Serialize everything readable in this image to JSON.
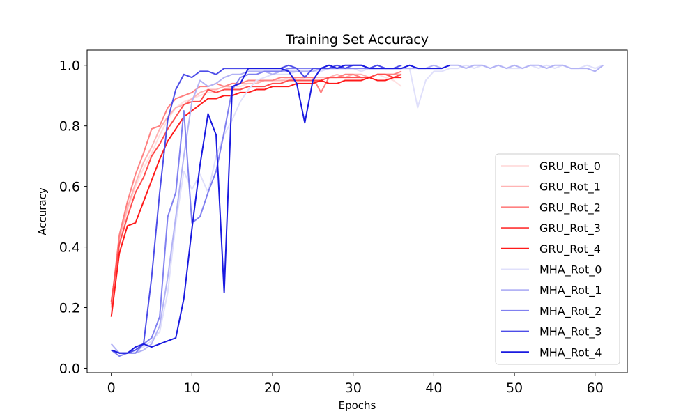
{
  "chart_data": {
    "type": "line",
    "title": "Training Set Accuracy",
    "xlabel": "Epochs",
    "ylabel": "Accuracy",
    "xlim": [
      -3,
      64
    ],
    "ylim": [
      -0.015,
      1.05
    ],
    "xticks": [
      0,
      10,
      20,
      30,
      40,
      50,
      60
    ],
    "yticks": [
      0.0,
      0.2,
      0.4,
      0.6,
      0.8,
      1.0
    ],
    "ytick_labels": [
      "0.0",
      "0.2",
      "0.4",
      "0.6",
      "0.8",
      "1.0"
    ],
    "grid": false,
    "legend_position": "lower-right",
    "series": [
      {
        "name": "GRU_Rot_0",
        "color": "#ffe0e0",
        "x": [
          0,
          1,
          2,
          3,
          4,
          5,
          6,
          7,
          8,
          9,
          10,
          11,
          12,
          13,
          14,
          15,
          16,
          17,
          18,
          19,
          20,
          21,
          22,
          23,
          24,
          25,
          26,
          27,
          28,
          29,
          30,
          31,
          32,
          33,
          34,
          35,
          36
        ],
        "y": [
          0.19,
          0.42,
          0.52,
          0.6,
          0.66,
          0.71,
          0.77,
          0.82,
          0.86,
          0.88,
          0.89,
          0.9,
          0.91,
          0.91,
          0.92,
          0.93,
          0.93,
          0.94,
          0.94,
          0.95,
          0.95,
          0.95,
          0.96,
          0.95,
          0.96,
          0.96,
          0.96,
          0.96,
          0.97,
          0.96,
          0.97,
          0.96,
          0.96,
          0.97,
          0.96,
          0.95,
          0.93
        ]
      },
      {
        "name": "GRU_Rot_1",
        "color": "#ffb3b3",
        "x": [
          0,
          1,
          2,
          3,
          4,
          5,
          6,
          7,
          8,
          9,
          10,
          11,
          12,
          13,
          14,
          15,
          16,
          17,
          18,
          19,
          20,
          21,
          22,
          23,
          24,
          25,
          26,
          27,
          28,
          29,
          30,
          31,
          32,
          33,
          34,
          35,
          36
        ],
        "y": [
          0.2,
          0.43,
          0.53,
          0.61,
          0.68,
          0.73,
          0.79,
          0.83,
          0.86,
          0.87,
          0.89,
          0.91,
          0.92,
          0.92,
          0.93,
          0.93,
          0.94,
          0.94,
          0.94,
          0.95,
          0.95,
          0.95,
          0.95,
          0.96,
          0.96,
          0.96,
          0.96,
          0.96,
          0.97,
          0.96,
          0.97,
          0.97,
          0.96,
          0.97,
          0.97,
          0.97,
          0.97
        ]
      },
      {
        "name": "GRU_Rot_2",
        "color": "#ff8080",
        "x": [
          0,
          1,
          2,
          3,
          4,
          5,
          6,
          7,
          8,
          9,
          10,
          11,
          12,
          13,
          14,
          15,
          16,
          17,
          18,
          19,
          20,
          21,
          22,
          23,
          24,
          25,
          26,
          27,
          28,
          29,
          30,
          31,
          32,
          33,
          34,
          35,
          36
        ],
        "y": [
          0.21,
          0.44,
          0.55,
          0.64,
          0.71,
          0.79,
          0.8,
          0.86,
          0.89,
          0.9,
          0.91,
          0.93,
          0.93,
          0.94,
          0.93,
          0.94,
          0.94,
          0.95,
          0.95,
          0.95,
          0.95,
          0.96,
          0.96,
          0.96,
          0.96,
          0.96,
          0.91,
          0.96,
          0.96,
          0.97,
          0.97,
          0.96,
          0.96,
          0.97,
          0.97,
          0.97,
          0.98
        ]
      },
      {
        "name": "GRU_Rot_3",
        "color": "#ff4d4d",
        "x": [
          0,
          1,
          2,
          3,
          4,
          5,
          6,
          7,
          8,
          9,
          10,
          11,
          12,
          13,
          14,
          15,
          16,
          17,
          18,
          19,
          20,
          21,
          22,
          23,
          24,
          25,
          26,
          27,
          28,
          29,
          30,
          31,
          32,
          33,
          34,
          35,
          36
        ],
        "y": [
          0.22,
          0.41,
          0.5,
          0.58,
          0.63,
          0.7,
          0.74,
          0.79,
          0.83,
          0.87,
          0.88,
          0.88,
          0.92,
          0.91,
          0.92,
          0.92,
          0.92,
          0.93,
          0.93,
          0.93,
          0.94,
          0.94,
          0.95,
          0.95,
          0.95,
          0.95,
          0.95,
          0.96,
          0.96,
          0.96,
          0.96,
          0.96,
          0.96,
          0.97,
          0.97,
          0.96,
          0.97
        ]
      },
      {
        "name": "GRU_Rot_4",
        "color": "#ff1a1a",
        "x": [
          0,
          1,
          2,
          3,
          4,
          5,
          6,
          7,
          8,
          9,
          10,
          11,
          12,
          13,
          14,
          15,
          16,
          17,
          18,
          19,
          20,
          21,
          22,
          23,
          24,
          25,
          26,
          27,
          28,
          29,
          30,
          31,
          32,
          33,
          34,
          35,
          36
        ],
        "y": [
          0.17,
          0.38,
          0.47,
          0.48,
          0.55,
          0.62,
          0.69,
          0.75,
          0.79,
          0.83,
          0.85,
          0.87,
          0.89,
          0.89,
          0.9,
          0.9,
          0.91,
          0.91,
          0.92,
          0.92,
          0.93,
          0.93,
          0.93,
          0.94,
          0.94,
          0.94,
          0.95,
          0.94,
          0.94,
          0.95,
          0.95,
          0.95,
          0.96,
          0.95,
          0.95,
          0.96,
          0.96
        ]
      },
      {
        "name": "MHA_Rot_0",
        "color": "#e0e0fb",
        "x": [
          0,
          1,
          2,
          3,
          4,
          5,
          6,
          7,
          8,
          9,
          10,
          11,
          12,
          13,
          14,
          15,
          16,
          17,
          18,
          19,
          20,
          21,
          22,
          23,
          24,
          25,
          26,
          27,
          28,
          29,
          30,
          31,
          32,
          33,
          34,
          35,
          36,
          37,
          38,
          39,
          40,
          41,
          42,
          43,
          44,
          45,
          46,
          47,
          48,
          49,
          50,
          51,
          52,
          53,
          54,
          55,
          56,
          57,
          58,
          59,
          60,
          61
        ],
        "y": [
          0.06,
          0.05,
          0.05,
          0.06,
          0.07,
          0.09,
          0.12,
          0.25,
          0.48,
          0.65,
          0.59,
          0.64,
          0.58,
          0.7,
          0.77,
          0.82,
          0.88,
          0.92,
          0.95,
          0.96,
          0.97,
          0.97,
          0.97,
          0.98,
          0.98,
          0.98,
          0.98,
          0.99,
          0.99,
          0.99,
          0.99,
          0.98,
          0.99,
          0.99,
          0.99,
          0.99,
          0.99,
          0.99,
          0.86,
          0.95,
          0.98,
          0.98,
          0.99,
          0.99,
          1.0,
          0.99,
          1.0,
          0.99,
          1.0,
          0.99,
          0.99,
          0.99,
          1.0,
          0.99,
          1.0,
          0.99,
          1.0,
          0.99,
          0.99,
          1.0,
          0.99,
          1.0
        ]
      },
      {
        "name": "MHA_Rot_1",
        "color": "#b3b3f5",
        "x": [
          0,
          1,
          2,
          3,
          4,
          5,
          6,
          7,
          8,
          9,
          10,
          11,
          12,
          13,
          14,
          15,
          16,
          17,
          18,
          19,
          20,
          21,
          22,
          23,
          24,
          25,
          26,
          27,
          28,
          29,
          30,
          31,
          32,
          33,
          34,
          35,
          36,
          37,
          38,
          39,
          40,
          41,
          42,
          43,
          44,
          45,
          46,
          47,
          48,
          49,
          50,
          51,
          52,
          53,
          54,
          55,
          56,
          57,
          58,
          59,
          60,
          61
        ],
        "y": [
          0.08,
          0.05,
          0.05,
          0.05,
          0.06,
          0.08,
          0.14,
          0.3,
          0.5,
          0.7,
          0.88,
          0.95,
          0.93,
          0.94,
          0.96,
          0.97,
          0.97,
          0.98,
          0.98,
          0.98,
          0.97,
          0.98,
          0.98,
          0.98,
          0.98,
          0.98,
          0.99,
          0.99,
          0.99,
          0.99,
          0.99,
          0.99,
          0.99,
          0.99,
          0.99,
          0.99,
          0.99,
          0.99,
          0.99,
          0.99,
          1.0,
          0.99,
          1.0,
          1.0,
          0.99,
          1.0,
          1.0,
          0.99,
          1.0,
          0.99,
          1.0,
          0.99,
          1.0,
          1.0,
          0.99,
          1.0,
          1.0,
          0.99,
          0.99,
          0.99,
          0.98,
          1.0
        ]
      },
      {
        "name": "MHA_Rot_2",
        "color": "#8080f0",
        "x": [
          0,
          1,
          2,
          3,
          4,
          5,
          6,
          7,
          8,
          9,
          10,
          11,
          12,
          13,
          14,
          15,
          16,
          17,
          18,
          19,
          20,
          21,
          22,
          23,
          24,
          25,
          26,
          27,
          28,
          29,
          30,
          31,
          32,
          33,
          34,
          35,
          36
        ],
        "y": [
          0.06,
          0.04,
          0.05,
          0.05,
          0.08,
          0.1,
          0.17,
          0.5,
          0.58,
          0.85,
          0.48,
          0.5,
          0.58,
          0.65,
          0.78,
          0.92,
          0.96,
          0.97,
          0.97,
          0.98,
          0.98,
          0.98,
          0.99,
          0.99,
          0.99,
          0.99,
          0.99,
          0.99,
          0.99,
          0.99,
          0.99,
          0.99,
          0.99,
          0.99,
          0.99,
          0.99,
          0.99
        ]
      },
      {
        "name": "MHA_Rot_3",
        "color": "#4d4de8",
        "x": [
          0,
          1,
          2,
          3,
          4,
          5,
          6,
          7,
          8,
          9,
          10,
          11,
          12,
          13,
          14,
          15,
          16,
          17,
          18,
          19,
          20,
          21,
          22,
          23,
          24,
          25,
          26,
          27,
          28,
          29,
          30,
          31,
          32,
          33,
          34,
          35,
          36
        ],
        "y": [
          0.06,
          0.05,
          0.05,
          0.06,
          0.08,
          0.3,
          0.58,
          0.82,
          0.92,
          0.97,
          0.96,
          0.98,
          0.98,
          0.97,
          0.99,
          0.99,
          0.99,
          0.99,
          0.99,
          0.99,
          0.99,
          0.99,
          1.0,
          0.99,
          0.96,
          0.99,
          0.99,
          0.99,
          1.0,
          0.99,
          1.0,
          1.0,
          0.99,
          1.0,
          0.99,
          0.99,
          1.0
        ]
      },
      {
        "name": "MHA_Rot_4",
        "color": "#1a1ae0",
        "x": [
          0,
          1,
          2,
          3,
          4,
          5,
          6,
          7,
          8,
          9,
          10,
          11,
          12,
          13,
          14,
          15,
          16,
          17,
          18,
          19,
          20,
          21,
          22,
          23,
          24,
          25,
          26,
          27,
          28,
          29,
          30,
          31,
          32,
          33,
          34,
          35,
          36,
          37,
          38,
          39,
          40,
          41,
          42
        ],
        "y": [
          0.06,
          0.05,
          0.05,
          0.07,
          0.08,
          0.07,
          0.08,
          0.09,
          0.1,
          0.23,
          0.46,
          0.67,
          0.84,
          0.77,
          0.25,
          0.93,
          0.94,
          0.99,
          0.99,
          0.99,
          0.99,
          0.99,
          0.98,
          0.94,
          0.81,
          0.95,
          0.99,
          1.0,
          0.99,
          1.0,
          1.0,
          1.0,
          0.99,
          0.99,
          0.99,
          0.99,
          0.99,
          1.0,
          0.99,
          0.99,
          0.99,
          0.99,
          1.0
        ]
      }
    ]
  }
}
